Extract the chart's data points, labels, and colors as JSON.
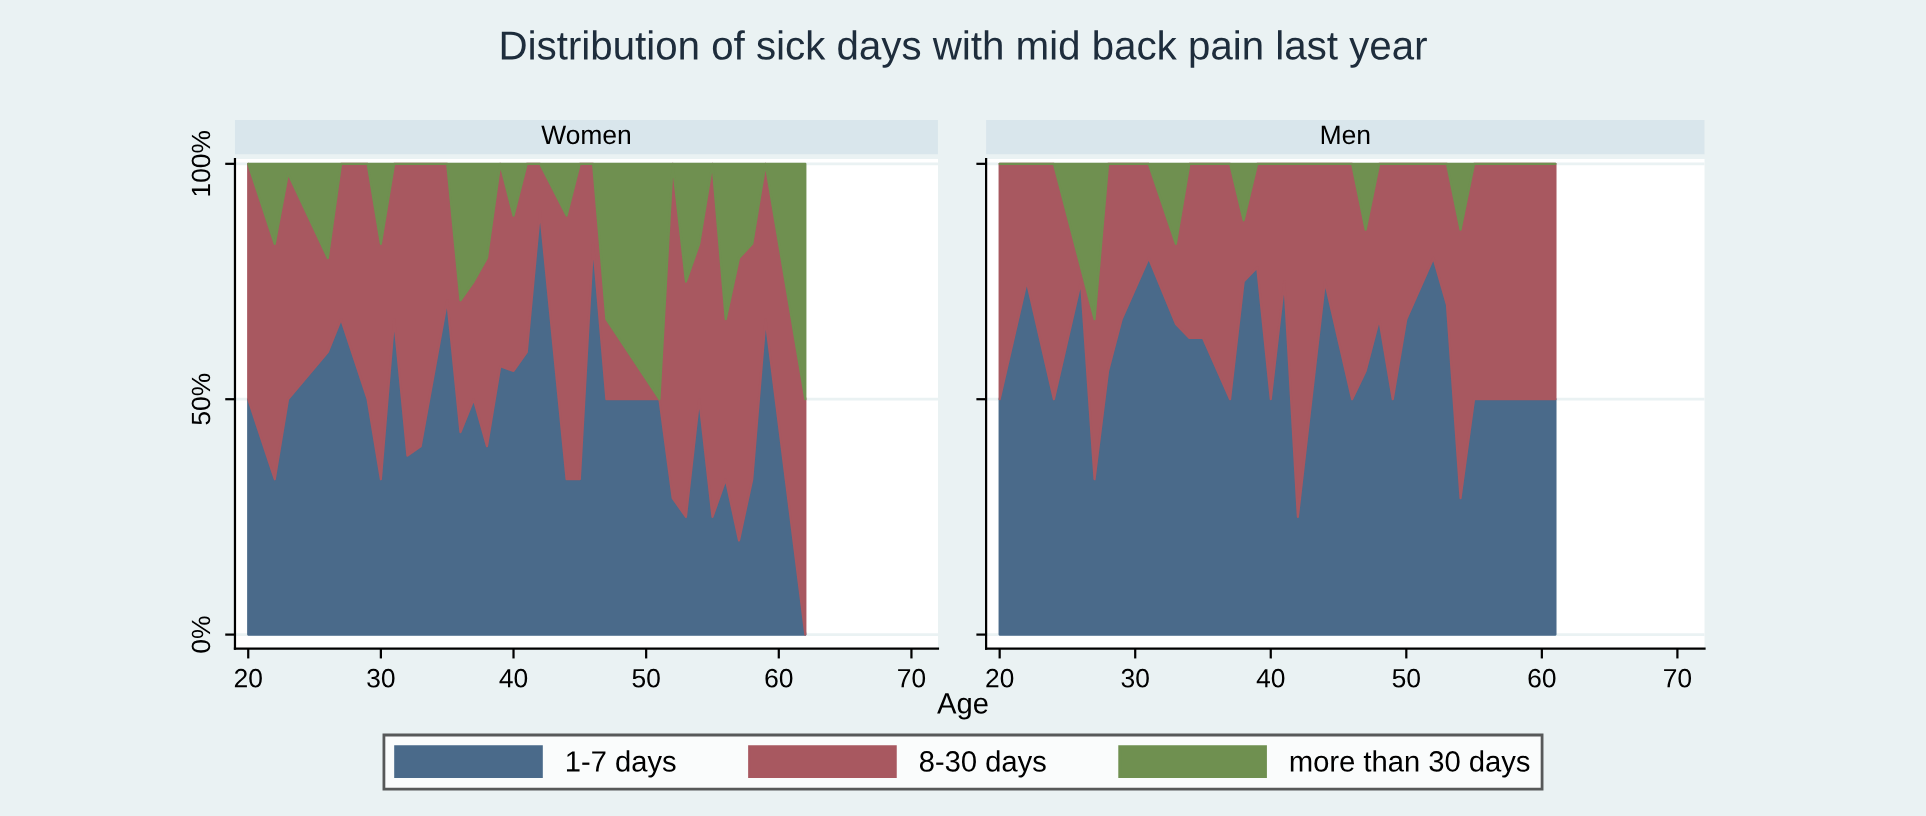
{
  "chart_data": [
    {
      "type": "area",
      "stacked": true,
      "title": "Distribution of sick days with mid back pain last year",
      "subtitle": "Women",
      "xlabel": "Age",
      "x": [
        20,
        22,
        23,
        26,
        27,
        29,
        30,
        31,
        32,
        33,
        35,
        36,
        37,
        38,
        39,
        40,
        41,
        42,
        44,
        45,
        46,
        47,
        51,
        52,
        53,
        54,
        55,
        56,
        57,
        58,
        59,
        62
      ],
      "series": [
        {
          "name": "1-7 days",
          "color": "#4a6a8a",
          "values": [
            50,
            33,
            50,
            60,
            67,
            50,
            33,
            67,
            38,
            40,
            71,
            43,
            50,
            40,
            57,
            56,
            60,
            90,
            33,
            33,
            83,
            50,
            50,
            29,
            25,
            50,
            25,
            33,
            20,
            33,
            67,
            0
          ]
        },
        {
          "name": "8-30 days",
          "color": "#a85860",
          "values": [
            50,
            50,
            48,
            20,
            33,
            50,
            50,
            33,
            62,
            60,
            29,
            28,
            25,
            40,
            43,
            33,
            40,
            10,
            56,
            67,
            17,
            17,
            0,
            71,
            50,
            33,
            75,
            34,
            60,
            50,
            33,
            50
          ]
        },
        {
          "name": "more than 30 days",
          "color": "#6f9050",
          "values": [
            0,
            17,
            2,
            20,
            0,
            0,
            17,
            0,
            0,
            0,
            0,
            29,
            25,
            20,
            0,
            11,
            0,
            0,
            11,
            0,
            0,
            33,
            50,
            0,
            25,
            17,
            0,
            33,
            20,
            17,
            0,
            50
          ]
        }
      ],
      "xlim": [
        19,
        72
      ],
      "xticks": [
        20,
        30,
        40,
        50,
        60,
        70
      ],
      "ylim": [
        -3,
        101
      ],
      "yticks": [
        {
          "value": 0,
          "label": "0%"
        },
        {
          "value": 50,
          "label": "50%"
        },
        {
          "value": 100,
          "label": "100%"
        }
      ],
      "grid": "y",
      "legend": "bottom"
    },
    {
      "type": "area",
      "stacked": true,
      "subtitle": "Men",
      "x": [
        20,
        22,
        24,
        26,
        27,
        28,
        29,
        31,
        33,
        34,
        35,
        37,
        38,
        39,
        40,
        41,
        42,
        44,
        46,
        47,
        48,
        49,
        50,
        52,
        53,
        54,
        55,
        61
      ],
      "series": [
        {
          "color": "#4a6a8a",
          "values": [
            50,
            75,
            50,
            75,
            33,
            56,
            67,
            80,
            66,
            63,
            63,
            50,
            75,
            78,
            50,
            75,
            25,
            75,
            50,
            56,
            67,
            50,
            67,
            80,
            70,
            29,
            50,
            50
          ]
        },
        {
          "color": "#a85860",
          "values": [
            50,
            25,
            50,
            3,
            34,
            44,
            33,
            20,
            17,
            37,
            37,
            50,
            13,
            22,
            50,
            25,
            75,
            25,
            50,
            30,
            33,
            50,
            33,
            20,
            30,
            57,
            50,
            50
          ]
        },
        {
          "color": "#6f9050",
          "values": [
            0,
            0,
            0,
            22,
            33,
            0,
            0,
            0,
            17,
            0,
            0,
            0,
            12,
            0,
            0,
            0,
            0,
            0,
            0,
            14,
            0,
            0,
            0,
            0,
            0,
            14,
            0,
            0
          ]
        }
      ],
      "xlim": [
        19,
        72
      ],
      "xticks": [
        20,
        30,
        40,
        50,
        60,
        70
      ],
      "ylim": [
        -3,
        101
      ],
      "yticks": [
        {
          "value": 0,
          "label": null
        },
        {
          "value": 50,
          "label": null
        },
        {
          "value": 100,
          "label": null
        }
      ],
      "grid": "y",
      "tick_labels": "x"
    }
  ]
}
